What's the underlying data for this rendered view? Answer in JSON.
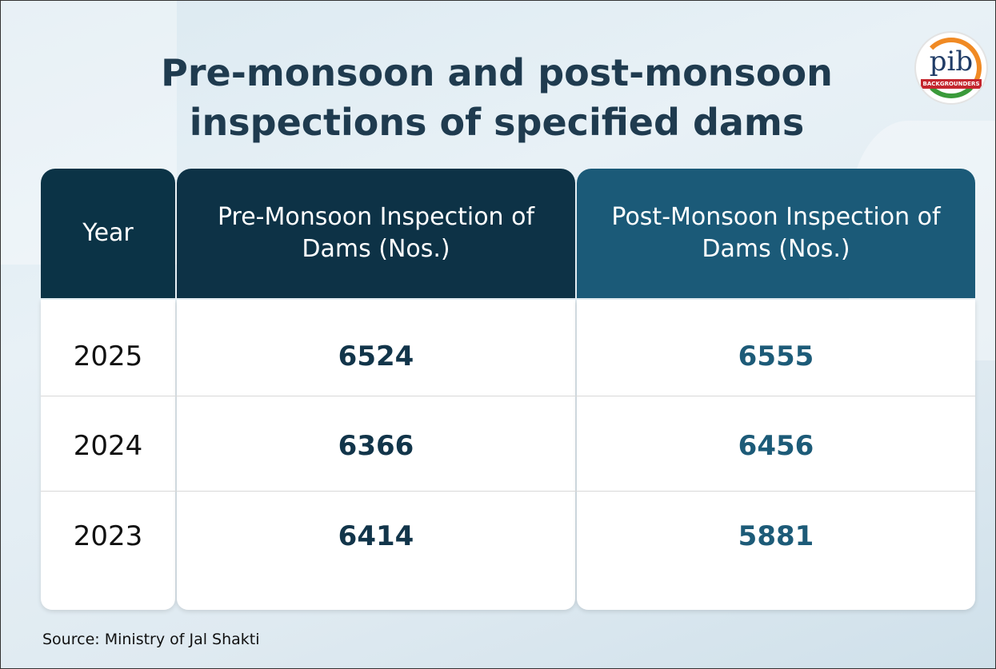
{
  "header": {
    "title_line1": "Pre-monsoon and post-monsoon",
    "title_line2": "inspections of specified dams",
    "logo_text": "pib",
    "logo_subtext": "BACKGROUNDERS"
  },
  "table": {
    "columns": [
      "Year",
      "Pre-Monsoon Inspection of Dams (Nos.)",
      "Post-Monsoon Inspection of Dams (Nos.)"
    ],
    "rows": [
      [
        2025,
        6524,
        6555
      ],
      [
        2024,
        6366,
        6456
      ],
      [
        2023,
        6414,
        5881
      ]
    ]
  },
  "footer": {
    "source": "Source: Ministry of Jal Shakti"
  }
}
